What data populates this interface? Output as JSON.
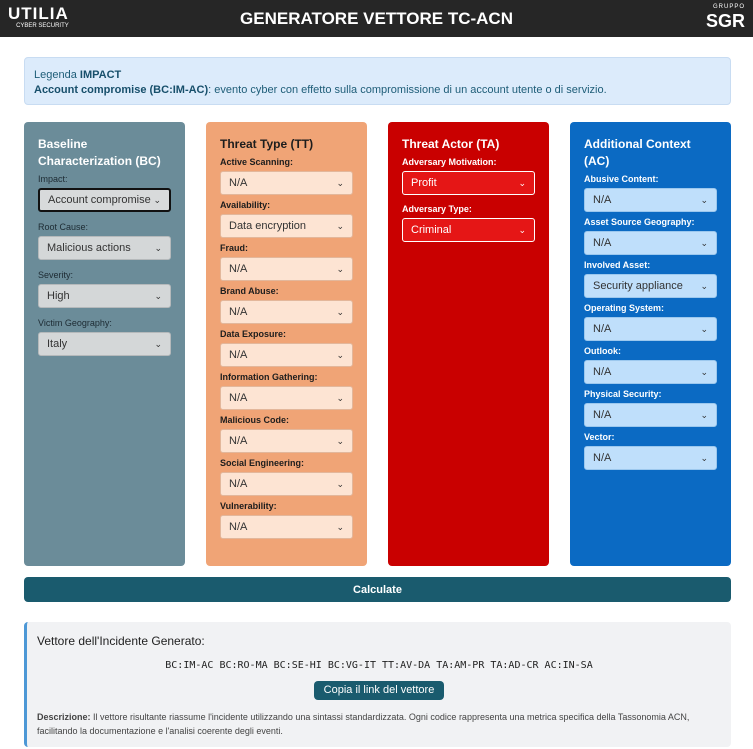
{
  "header": {
    "title": "GENERATORE VETTORE TC-ACN",
    "logo_left": "UTILIA",
    "logo_left_sub": "CYBER SECURITY",
    "logo_right": "SGR",
    "logo_right_sub": "GRUPPO"
  },
  "legend": {
    "prefix": "Legenda",
    "term": "IMPACT",
    "item": "Account compromise (BC:IM-AC)",
    "text": ": evento cyber con effetto sulla compromissione di un account utente o di servizio."
  },
  "columns": [
    {
      "title": "Baseline Characterization (BC)",
      "color": "#6b8c99",
      "fields": [
        {
          "label": "Impact:",
          "value": "Account compromise"
        },
        {
          "label": "Root Cause:",
          "value": "Malicious actions"
        },
        {
          "label": "Severity:",
          "value": "High"
        },
        {
          "label": "Victim Geography:",
          "value": "Italy"
        }
      ]
    },
    {
      "title": "Threat Type (TT)",
      "color": "#f0a476",
      "fields": [
        {
          "label": "Active Scanning:",
          "value": "N/A"
        },
        {
          "label": "Availability:",
          "value": "Data encryption"
        },
        {
          "label": "Fraud:",
          "value": "N/A"
        },
        {
          "label": "Brand Abuse:",
          "value": "N/A"
        },
        {
          "label": "Data Exposure:",
          "value": "N/A"
        },
        {
          "label": "Information Gathering:",
          "value": "N/A"
        },
        {
          "label": "Malicious Code:",
          "value": "N/A"
        },
        {
          "label": "Social Engineering:",
          "value": "N/A"
        },
        {
          "label": "Vulnerability:",
          "value": "N/A"
        }
      ]
    },
    {
      "title": "Threat Actor (TA)",
      "color": "#c90000",
      "fields": [
        {
          "label": "Adversary Motivation:",
          "value": "Profit"
        },
        {
          "label": "Adversary Type:",
          "value": "Criminal"
        }
      ]
    },
    {
      "title": "Additional Context (AC)",
      "color": "#0b6ac3",
      "fields": [
        {
          "label": "Abusive Content:",
          "value": "N/A"
        },
        {
          "label": "Asset Source Geography:",
          "value": "N/A"
        },
        {
          "label": "Involved Asset:",
          "value": "Security appliance"
        },
        {
          "label": "Operating System:",
          "value": "N/A"
        },
        {
          "label": "Outlook:",
          "value": "N/A"
        },
        {
          "label": "Physical Security:",
          "value": "N/A"
        },
        {
          "label": "Vector:",
          "value": "N/A"
        }
      ]
    }
  ],
  "calculate_label": "Calculate",
  "result": {
    "title": "Vettore dell'Incidente Generato:",
    "vector": "BC:IM-AC BC:RO-MA BC:SE-HI BC:VG-IT TT:AV-DA TA:AM-PR TA:AD-CR AC:IN-SA",
    "copy_label": "Copia il link del vettore",
    "desc_label": "Descrizione:",
    "desc_text": " Il vettore risultante riassume l'incidente utilizzando una sintassi standardizzata. Ogni codice rappresenta una metrica specifica della Tassonomia ACN, facilitando la documentazione e l'analisi coerente degli eventi."
  }
}
